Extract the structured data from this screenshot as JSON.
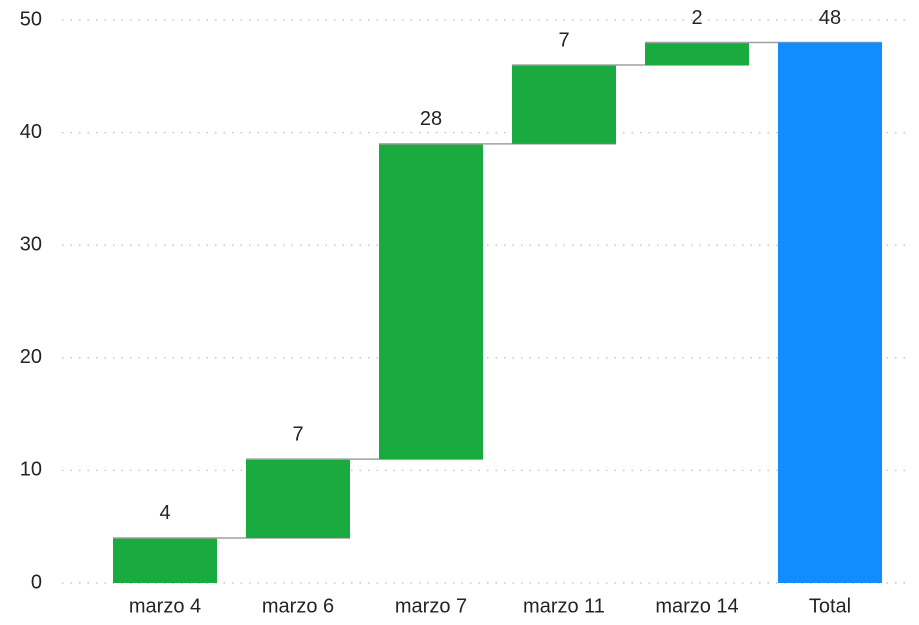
{
  "chart_data": {
    "type": "waterfall",
    "categories": [
      "marzo 4",
      "marzo 6",
      "marzo 7",
      "marzo 11",
      "marzo 14",
      "Total"
    ],
    "values": [
      4,
      7,
      28,
      7,
      2,
      48
    ],
    "increase_color": "#1aab40",
    "total_color": "#118dff",
    "ylim": [
      0,
      50
    ],
    "yticks": [
      0,
      10,
      20,
      30,
      40,
      50
    ],
    "grid": true
  }
}
